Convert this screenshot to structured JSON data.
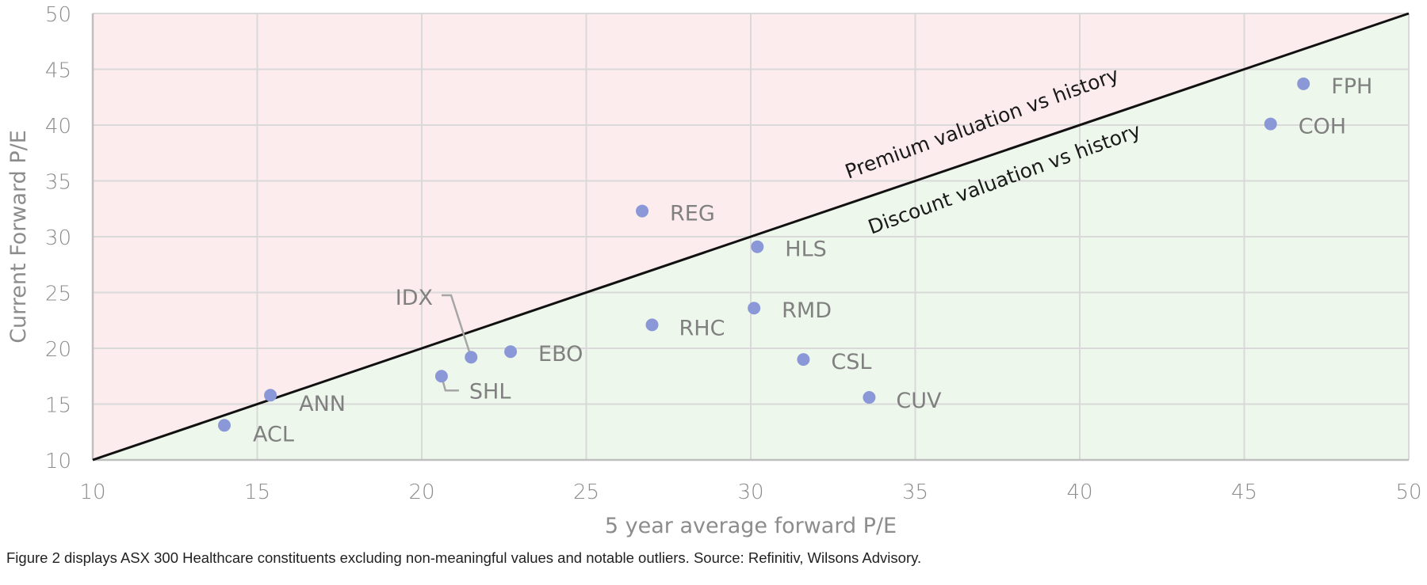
{
  "chart_data": {
    "type": "scatter",
    "title": "",
    "xlabel": "5 year average forward P/E",
    "ylabel": "Current Forward P/E",
    "xlim": [
      10,
      50
    ],
    "ylim": [
      10,
      50
    ],
    "xticks": [
      10,
      15,
      20,
      25,
      30,
      35,
      40,
      45,
      50
    ],
    "yticks": [
      10,
      15,
      20,
      25,
      30,
      35,
      40,
      45,
      50
    ],
    "grid": true,
    "legend": "none",
    "reference_line": {
      "label": "y = x",
      "from": [
        10,
        10
      ],
      "to": [
        50,
        50
      ]
    },
    "regions": [
      {
        "name": "premium",
        "label": "Premium valuation vs history",
        "color": "#fdecee"
      },
      {
        "name": "discount",
        "label": "Discount valuation vs history",
        "color": "#eef7ec"
      }
    ],
    "point_color": "#8b98d8",
    "points": [
      {
        "label": "ACL",
        "x": 14.0,
        "y": 13.1
      },
      {
        "label": "ANN",
        "x": 15.4,
        "y": 15.8
      },
      {
        "label": "SHL",
        "x": 20.6,
        "y": 17.5
      },
      {
        "label": "IDX",
        "x": 21.5,
        "y": 19.2
      },
      {
        "label": "EBO",
        "x": 22.7,
        "y": 19.7
      },
      {
        "label": "REG",
        "x": 26.7,
        "y": 32.3
      },
      {
        "label": "RHC",
        "x": 27.0,
        "y": 22.1
      },
      {
        "label": "RMD",
        "x": 30.1,
        "y": 23.6
      },
      {
        "label": "HLS",
        "x": 30.2,
        "y": 29.1
      },
      {
        "label": "CSL",
        "x": 31.6,
        "y": 19.0
      },
      {
        "label": "CUV",
        "x": 33.6,
        "y": 15.6
      },
      {
        "label": "COH",
        "x": 45.8,
        "y": 40.1
      },
      {
        "label": "FPH",
        "x": 46.8,
        "y": 43.7
      }
    ]
  },
  "caption": "Figure 2 displays ASX 300 Healthcare constituents excluding non-meaningful values and notable outliers. Source: Refinitiv, Wilsons Advisory."
}
